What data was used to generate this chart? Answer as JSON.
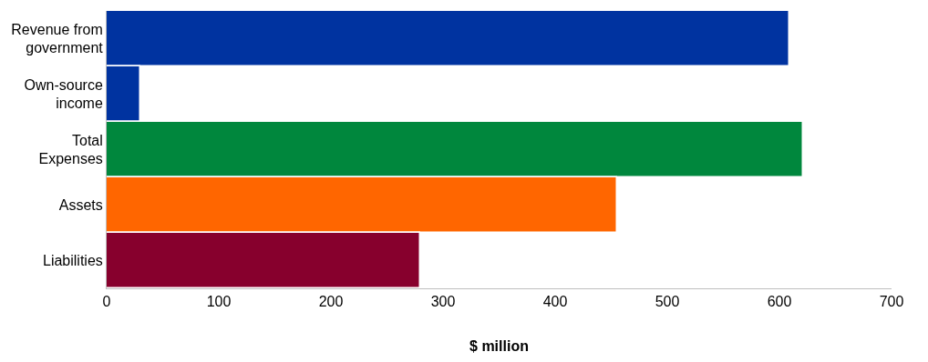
{
  "chart_data": {
    "type": "bar",
    "orientation": "horizontal",
    "xlabel": "$ million",
    "categories": [
      "Revenue from government",
      "Own-source income",
      "Total Expenses",
      "Assets",
      "Liabilities"
    ],
    "values": [
      609,
      30,
      621,
      455,
      280
    ],
    "colors": [
      "#0033a0",
      "#0033a0",
      "#00873d",
      "#ff6600",
      "#87002d"
    ],
    "xlim": [
      0,
      700
    ],
    "xticks": [
      0,
      100,
      200,
      300,
      400,
      500,
      600,
      700
    ]
  }
}
